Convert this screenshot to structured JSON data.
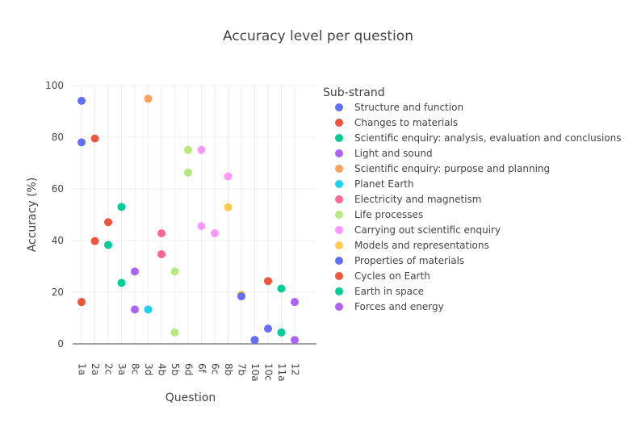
{
  "chart_data": {
    "type": "scatter",
    "title": "Accuracy level per question",
    "xlabel": "Question",
    "ylabel": "Accuracy (%)",
    "ylim": [
      0,
      100
    ],
    "yticks": [
      0,
      20,
      40,
      60,
      80,
      100
    ],
    "grid": true,
    "legend_title": "Sub-strand",
    "legend_position": "right",
    "categories": [
      "1a",
      "2a",
      "2c",
      "3a",
      "8c",
      "3d",
      "4b",
      "5b",
      "6d",
      "6f",
      "6c",
      "8b",
      "7b",
      "10a",
      "10c",
      "11a",
      "12"
    ],
    "series": [
      {
        "name": "Structure and function",
        "color": "#636efa",
        "points": [
          {
            "x": "1a",
            "y": 94.1
          },
          {
            "x": "1a",
            "y": 78
          }
        ]
      },
      {
        "name": "Changes to materials",
        "color": "#ef553b",
        "points": [
          {
            "x": "1a",
            "y": 16.2
          },
          {
            "x": "2a",
            "y": 39.8
          },
          {
            "x": "2a",
            "y": 79.5
          },
          {
            "x": "2c",
            "y": 47.1
          }
        ]
      },
      {
        "name": "Scientific enquiry: analysis, evaluation and conclusions",
        "color": "#00cc96",
        "points": [
          {
            "x": "2c",
            "y": 38.3
          },
          {
            "x": "3a",
            "y": 23.6
          },
          {
            "x": "3a",
            "y": 53
          }
        ]
      },
      {
        "name": "Light and sound",
        "color": "#ab63fa",
        "points": [
          {
            "x": "8c",
            "y": 13.3
          },
          {
            "x": "8c",
            "y": 28
          }
        ]
      },
      {
        "name": "Scientific enquiry: purpose  and planning",
        "color": "#ffa15a",
        "points": [
          {
            "x": "3d",
            "y": 94.9
          }
        ]
      },
      {
        "name": "Planet Earth",
        "color": "#19d3f3",
        "points": [
          {
            "x": "3d",
            "y": 13.3
          }
        ]
      },
      {
        "name": "Electricity and magnetism",
        "color": "#ff6692",
        "points": [
          {
            "x": "4b",
            "y": 34.7
          },
          {
            "x": "4b",
            "y": 42.8
          }
        ]
      },
      {
        "name": "Life processes",
        "color": "#b6e880",
        "points": [
          {
            "x": "5b",
            "y": 28
          },
          {
            "x": "5b",
            "y": 4.4
          },
          {
            "x": "6d",
            "y": 75.1
          },
          {
            "x": "6d",
            "y": 66.3
          }
        ]
      },
      {
        "name": "Carrying out scientific enquiry",
        "color": "#ff97ff",
        "points": [
          {
            "x": "6f",
            "y": 75.1
          },
          {
            "x": "6f",
            "y": 45.6
          },
          {
            "x": "6c",
            "y": 42.8
          },
          {
            "x": "8b",
            "y": 64.8
          }
        ]
      },
      {
        "name": "Models and representations",
        "color": "#fecb52",
        "points": [
          {
            "x": "8b",
            "y": 52.9
          },
          {
            "x": "7b",
            "y": 19.1
          }
        ]
      },
      {
        "name": "Properties of materials",
        "color": "#636efa",
        "points": [
          {
            "x": "7b",
            "y": 18.4
          },
          {
            "x": "10a",
            "y": 1.5
          },
          {
            "x": "10a",
            "y": 1.5
          },
          {
            "x": "10c",
            "y": 5.9
          }
        ]
      },
      {
        "name": "Cycles on Earth",
        "color": "#ef553b",
        "points": [
          {
            "x": "10c",
            "y": 24.3
          }
        ]
      },
      {
        "name": "Earth in space",
        "color": "#00cc96",
        "points": [
          {
            "x": "11a",
            "y": 21.4
          },
          {
            "x": "11a",
            "y": 4.4
          }
        ]
      },
      {
        "name": "Forces and energy",
        "color": "#ab63fa",
        "points": [
          {
            "x": "12",
            "y": 1.5
          },
          {
            "x": "12",
            "y": 16.2
          }
        ]
      }
    ]
  }
}
